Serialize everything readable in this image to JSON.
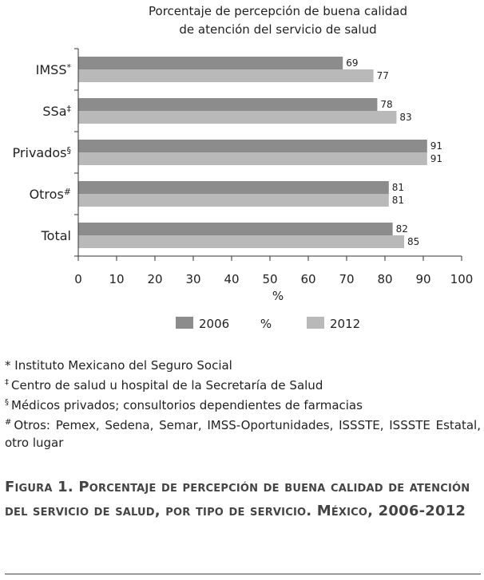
{
  "chart_data": {
    "type": "bar",
    "orientation": "horizontal",
    "title": "Porcentaje de percepción de buena calidad de atención del servicio de salud",
    "title_lines": [
      "Porcentaje de percepción de buena calidad",
      "de atención del servicio de salud"
    ],
    "categories": [
      "IMSS*",
      "SSa‡",
      "Privados§",
      "Otros#",
      "Total"
    ],
    "category_labels": [
      {
        "text": "IMSS",
        "mark": "*"
      },
      {
        "text": "SSa",
        "mark": "‡"
      },
      {
        "text": "Privados",
        "mark": "§"
      },
      {
        "text": "Otros",
        "mark": "#"
      },
      {
        "text": "Total",
        "mark": ""
      }
    ],
    "series": [
      {
        "name": "2006",
        "values": [
          69,
          78,
          91,
          81,
          82
        ],
        "color": "#8c8c8c"
      },
      {
        "name": "2012",
        "values": [
          77,
          83,
          91,
          81,
          85
        ],
        "color": "#b9b9b9"
      }
    ],
    "xlabel": "%",
    "legend_center_label": "%",
    "xlim": [
      0,
      100
    ],
    "xticks": [
      0,
      10,
      20,
      30,
      40,
      50,
      60,
      70,
      80,
      90,
      100
    ],
    "grid": false,
    "legend_position": "bottom"
  },
  "footnotes": [
    {
      "mark": "*",
      "text": "Instituto Mexicano del Seguro Social"
    },
    {
      "mark": "‡",
      "text": "Centro de salud u hospital de la Secretaría de Salud"
    },
    {
      "mark": "§",
      "text": "Médicos privados; consultorios dependientes de farmacias"
    },
    {
      "mark": "#",
      "text": "Otros: Pemex, Sedena, Semar, IMSS-Oportunidades, ISSSTE, ISSSTE Estatal, otro lugar"
    }
  ],
  "caption": {
    "label": "Figura 1.",
    "text": "Porcentaje de percepción de buena calidad de atención del servicio de salud, por tipo de servicio. México, 2006-2012"
  }
}
